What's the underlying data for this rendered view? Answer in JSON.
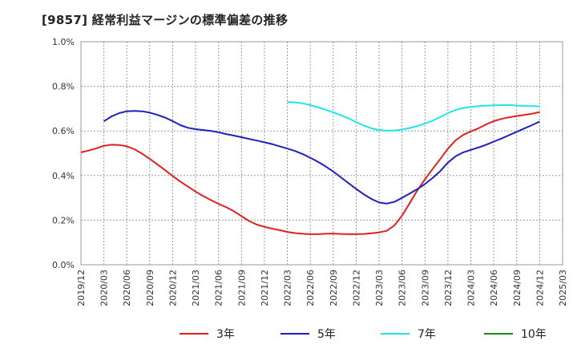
{
  "title": "[9857]  経常利益マージンの標準偏差の推移",
  "chart_data": {
    "type": "line",
    "ylim": [
      0,
      1.0
    ],
    "y_ticks": [
      "0.0%",
      "0.2%",
      "0.4%",
      "0.6%",
      "0.8%",
      "1.0%"
    ],
    "x_ticks": [
      "2019/12",
      "2020/03",
      "2020/06",
      "2020/09",
      "2020/12",
      "2021/03",
      "2021/06",
      "2021/09",
      "2021/12",
      "2022/03",
      "2022/06",
      "2022/09",
      "2022/12",
      "2023/03",
      "2023/06",
      "2023/09",
      "2023/12",
      "2024/03",
      "2024/06",
      "2024/09",
      "2024/12",
      "2025/03"
    ],
    "grid": true,
    "legend_placement": "bottom",
    "series": [
      {
        "name": "3年",
        "color": "#e02020",
        "x": [
          "2019/12",
          "2020/01",
          "2020/02",
          "2020/03",
          "2020/04",
          "2020/05",
          "2020/06",
          "2020/07",
          "2020/08",
          "2020/09",
          "2020/10",
          "2020/11",
          "2020/12",
          "2021/01",
          "2021/02",
          "2021/03",
          "2021/04",
          "2021/05",
          "2021/06",
          "2021/07",
          "2021/08",
          "2021/09",
          "2021/10",
          "2021/11",
          "2021/12",
          "2022/01",
          "2022/02",
          "2022/03",
          "2022/04",
          "2022/05",
          "2022/06",
          "2022/07",
          "2022/08",
          "2022/09",
          "2022/10",
          "2022/11",
          "2022/12",
          "2023/01",
          "2023/02",
          "2023/03",
          "2023/04",
          "2023/05",
          "2023/06",
          "2023/07",
          "2023/08",
          "2023/09",
          "2023/10",
          "2023/11",
          "2023/12",
          "2024/01",
          "2024/02",
          "2024/03",
          "2024/04",
          "2024/05",
          "2024/06",
          "2024/07",
          "2024/08",
          "2024/09",
          "2024/10",
          "2024/11",
          "2024/12"
        ],
        "values": [
          0.504,
          0.512,
          0.522,
          0.533,
          0.538,
          0.537,
          0.531,
          0.518,
          0.498,
          0.475,
          0.45,
          0.425,
          0.398,
          0.373,
          0.35,
          0.328,
          0.308,
          0.29,
          0.273,
          0.258,
          0.24,
          0.218,
          0.196,
          0.18,
          0.17,
          0.162,
          0.155,
          0.147,
          0.142,
          0.139,
          0.137,
          0.137,
          0.139,
          0.14,
          0.138,
          0.137,
          0.137,
          0.138,
          0.141,
          0.145,
          0.152,
          0.176,
          0.22,
          0.276,
          0.333,
          0.383,
          0.429,
          0.474,
          0.52,
          0.558,
          0.582,
          0.598,
          0.612,
          0.629,
          0.644,
          0.654,
          0.661,
          0.667,
          0.672,
          0.677,
          0.685
        ]
      },
      {
        "name": "5年",
        "color": "#1f1fbf",
        "x": [
          "2020/03",
          "2020/04",
          "2020/05",
          "2020/06",
          "2020/07",
          "2020/08",
          "2020/09",
          "2020/10",
          "2020/11",
          "2020/12",
          "2021/01",
          "2021/02",
          "2021/03",
          "2021/04",
          "2021/05",
          "2021/06",
          "2021/07",
          "2021/08",
          "2021/09",
          "2021/10",
          "2021/11",
          "2021/12",
          "2022/01",
          "2022/02",
          "2022/03",
          "2022/04",
          "2022/05",
          "2022/06",
          "2022/07",
          "2022/08",
          "2022/09",
          "2022/10",
          "2022/11",
          "2022/12",
          "2023/01",
          "2023/02",
          "2023/03",
          "2023/04",
          "2023/05",
          "2023/06",
          "2023/07",
          "2023/08",
          "2023/09",
          "2023/10",
          "2023/11",
          "2023/12",
          "2024/01",
          "2024/02",
          "2024/03",
          "2024/04",
          "2024/05",
          "2024/06",
          "2024/07",
          "2024/08",
          "2024/09",
          "2024/10",
          "2024/11",
          "2024/12"
        ],
        "values": [
          0.643,
          0.665,
          0.68,
          0.688,
          0.69,
          0.688,
          0.682,
          0.672,
          0.66,
          0.644,
          0.626,
          0.614,
          0.608,
          0.604,
          0.6,
          0.594,
          0.586,
          0.579,
          0.572,
          0.564,
          0.557,
          0.549,
          0.541,
          0.531,
          0.521,
          0.51,
          0.496,
          0.48,
          0.462,
          0.441,
          0.418,
          0.392,
          0.366,
          0.34,
          0.316,
          0.295,
          0.279,
          0.274,
          0.282,
          0.3,
          0.319,
          0.339,
          0.362,
          0.389,
          0.42,
          0.458,
          0.486,
          0.504,
          0.515,
          0.526,
          0.538,
          0.552,
          0.566,
          0.581,
          0.596,
          0.611,
          0.626,
          0.642
        ]
      },
      {
        "name": "7年",
        "color": "#1fe6e6",
        "x": [
          "2022/03",
          "2022/04",
          "2022/05",
          "2022/06",
          "2022/07",
          "2022/08",
          "2022/09",
          "2022/10",
          "2022/11",
          "2022/12",
          "2023/01",
          "2023/02",
          "2023/03",
          "2023/04",
          "2023/05",
          "2023/06",
          "2023/07",
          "2023/08",
          "2023/09",
          "2023/10",
          "2023/11",
          "2023/12",
          "2024/01",
          "2024/02",
          "2024/03",
          "2024/04",
          "2024/05",
          "2024/06",
          "2024/07",
          "2024/08",
          "2024/09",
          "2024/10",
          "2024/11",
          "2024/12"
        ],
        "values": [
          0.73,
          0.728,
          0.724,
          0.716,
          0.706,
          0.695,
          0.683,
          0.67,
          0.656,
          0.64,
          0.624,
          0.612,
          0.604,
          0.601,
          0.602,
          0.606,
          0.613,
          0.622,
          0.633,
          0.646,
          0.662,
          0.68,
          0.694,
          0.703,
          0.708,
          0.711,
          0.713,
          0.715,
          0.716,
          0.716,
          0.714,
          0.712,
          0.711,
          0.71
        ]
      },
      {
        "name": "10年",
        "color": "#1a8a1a",
        "x": [],
        "values": []
      }
    ]
  }
}
